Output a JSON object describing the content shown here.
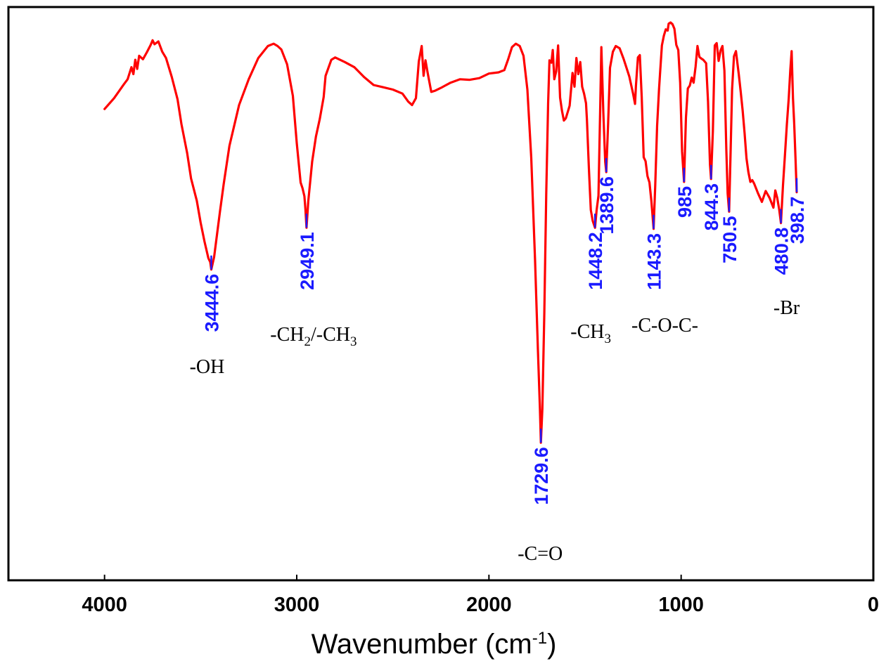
{
  "chart_data": {
    "type": "line",
    "title": "",
    "xlabel": "Wavenumber (cm",
    "xlabel_sup": "-1",
    "xlabel_close": ")",
    "ylabel": "",
    "xlim": [
      4500,
      0
    ],
    "ylim": [
      0,
      100
    ],
    "xticks": [
      4000,
      3000,
      2000,
      1000,
      0
    ],
    "grid": false,
    "line_color": "#ff0000",
    "peak_color": "#1a1aff",
    "series": [
      {
        "points": [
          [
            4000,
            82.2
          ],
          [
            3950,
            84.1
          ],
          [
            3900,
            86.5
          ],
          [
            3880,
            87.4
          ],
          [
            3860,
            89.5
          ],
          [
            3850,
            88.3
          ],
          [
            3840,
            90.8
          ],
          [
            3830,
            89.2
          ],
          [
            3820,
            91.5
          ],
          [
            3800,
            90.9
          ],
          [
            3780,
            92.1
          ],
          [
            3760,
            93.4
          ],
          [
            3750,
            94.2
          ],
          [
            3740,
            93.5
          ],
          [
            3720,
            94.0
          ],
          [
            3700,
            92.2
          ],
          [
            3680,
            91.1
          ],
          [
            3650,
            87.8
          ],
          [
            3620,
            83.9
          ],
          [
            3600,
            79.6
          ],
          [
            3570,
            74.5
          ],
          [
            3550,
            70.1
          ],
          [
            3520,
            66.2
          ],
          [
            3500,
            62.4
          ],
          [
            3480,
            59.1
          ],
          [
            3460,
            56.2
          ],
          [
            3450,
            55.5
          ],
          [
            3444.6,
            54.2
          ],
          [
            3430,
            56.4
          ],
          [
            3400,
            64.2
          ],
          [
            3380,
            69.1
          ],
          [
            3350,
            75.8
          ],
          [
            3300,
            82.9
          ],
          [
            3250,
            87.4
          ],
          [
            3200,
            91.1
          ],
          [
            3150,
            93.2
          ],
          [
            3120,
            93.6
          ],
          [
            3100,
            93.2
          ],
          [
            3080,
            92.6
          ],
          [
            3050,
            90.0
          ],
          [
            3020,
            84.5
          ],
          [
            3000,
            76.3
          ],
          [
            2980,
            69.4
          ],
          [
            2970,
            68.4
          ],
          [
            2960,
            67.0
          ],
          [
            2955,
            64.8
          ],
          [
            2949.1,
            61.5
          ],
          [
            2940,
            66.1
          ],
          [
            2920,
            73.0
          ],
          [
            2900,
            77.4
          ],
          [
            2880,
            80.5
          ],
          [
            2860,
            84.3
          ],
          [
            2850,
            88.0
          ],
          [
            2820,
            90.8
          ],
          [
            2800,
            91.2
          ],
          [
            2750,
            90.4
          ],
          [
            2700,
            89.5
          ],
          [
            2650,
            87.8
          ],
          [
            2600,
            86.4
          ],
          [
            2550,
            86.0
          ],
          [
            2500,
            85.6
          ],
          [
            2450,
            84.9
          ],
          [
            2420,
            83.5
          ],
          [
            2400,
            82.9
          ],
          [
            2380,
            84.1
          ],
          [
            2365,
            90.5
          ],
          [
            2350,
            93.2
          ],
          [
            2340,
            88.0
          ],
          [
            2330,
            90.7
          ],
          [
            2320,
            88.7
          ],
          [
            2300,
            85.2
          ],
          [
            2280,
            85.4
          ],
          [
            2250,
            85.9
          ],
          [
            2200,
            86.8
          ],
          [
            2150,
            87.4
          ],
          [
            2100,
            87.3
          ],
          [
            2050,
            87.6
          ],
          [
            2000,
            88.4
          ],
          [
            1950,
            88.6
          ],
          [
            1920,
            89.0
          ],
          [
            1900,
            90.9
          ],
          [
            1880,
            93.0
          ],
          [
            1860,
            93.6
          ],
          [
            1840,
            93.2
          ],
          [
            1820,
            91.5
          ],
          [
            1800,
            85.6
          ],
          [
            1780,
            73.7
          ],
          [
            1760,
            55.9
          ],
          [
            1745,
            40.1
          ],
          [
            1735,
            30.1
          ],
          [
            1729.6,
            24.0
          ],
          [
            1722,
            29.9
          ],
          [
            1712,
            46.7
          ],
          [
            1702,
            67.3
          ],
          [
            1692,
            83.2
          ],
          [
            1685,
            90.7
          ],
          [
            1675,
            90.3
          ],
          [
            1668,
            92.5
          ],
          [
            1660,
            87.4
          ],
          [
            1650,
            88.8
          ],
          [
            1640,
            93.3
          ],
          [
            1630,
            84.2
          ],
          [
            1620,
            81.9
          ],
          [
            1610,
            80.2
          ],
          [
            1600,
            80.6
          ],
          [
            1580,
            82.8
          ],
          [
            1565,
            88.5
          ],
          [
            1555,
            86.1
          ],
          [
            1545,
            91.1
          ],
          [
            1535,
            88.3
          ],
          [
            1525,
            90.4
          ],
          [
            1515,
            86.1
          ],
          [
            1505,
            84.9
          ],
          [
            1495,
            83.2
          ],
          [
            1490,
            80.3
          ],
          [
            1480,
            71.8
          ],
          [
            1470,
            64.6
          ],
          [
            1460,
            62.7
          ],
          [
            1448.2,
            61.5
          ],
          [
            1440,
            64.5
          ],
          [
            1430,
            67.1
          ],
          [
            1420,
            84.5
          ],
          [
            1415,
            93.0
          ],
          [
            1405,
            81.6
          ],
          [
            1395,
            73.0
          ],
          [
            1389.6,
            71.2
          ],
          [
            1380,
            79.6
          ],
          [
            1370,
            89.4
          ],
          [
            1355,
            92.2
          ],
          [
            1340,
            93.2
          ],
          [
            1320,
            92.8
          ],
          [
            1300,
            91.0
          ],
          [
            1270,
            87.9
          ],
          [
            1250,
            84.9
          ],
          [
            1240,
            83.1
          ],
          [
            1235,
            86.3
          ],
          [
            1225,
            91.2
          ],
          [
            1215,
            91.6
          ],
          [
            1205,
            84.3
          ],
          [
            1195,
            73.8
          ],
          [
            1185,
            73.1
          ],
          [
            1175,
            70.5
          ],
          [
            1165,
            69.4
          ],
          [
            1155,
            66.2
          ],
          [
            1143.3,
            61.3
          ],
          [
            1135,
            68.8
          ],
          [
            1125,
            79.3
          ],
          [
            1115,
            85.6
          ],
          [
            1110,
            88.3
          ],
          [
            1100,
            93.3
          ],
          [
            1090,
            95.0
          ],
          [
            1080,
            96.1
          ],
          [
            1070,
            95.9
          ],
          [
            1065,
            97.1
          ],
          [
            1055,
            97.3
          ],
          [
            1045,
            97.0
          ],
          [
            1035,
            96.2
          ],
          [
            1025,
            93.4
          ],
          [
            1015,
            92.5
          ],
          [
            1005,
            86.8
          ],
          [
            995,
            74.8
          ],
          [
            985,
            69.5
          ],
          [
            975,
            80.7
          ],
          [
            965,
            85.8
          ],
          [
            955,
            86.3
          ],
          [
            945,
            87.7
          ],
          [
            935,
            86.8
          ],
          [
            925,
            89.6
          ],
          [
            915,
            93.2
          ],
          [
            905,
            91.3
          ],
          [
            895,
            91.0
          ],
          [
            885,
            90.8
          ],
          [
            870,
            90.2
          ],
          [
            860,
            83.5
          ],
          [
            850,
            72.5
          ],
          [
            844.3,
            70.0
          ],
          [
            835,
            78.4
          ],
          [
            825,
            93.3
          ],
          [
            815,
            93.7
          ],
          [
            805,
            90.6
          ],
          [
            795,
            92.4
          ],
          [
            785,
            93.2
          ],
          [
            775,
            88.9
          ],
          [
            765,
            75.2
          ],
          [
            758,
            67.5
          ],
          [
            750.5,
            64.3
          ],
          [
            743,
            74.2
          ],
          [
            735,
            85.6
          ],
          [
            725,
            91.4
          ],
          [
            715,
            92.3
          ],
          [
            700,
            88.2
          ],
          [
            690,
            85.2
          ],
          [
            680,
            82.0
          ],
          [
            670,
            78.0
          ],
          [
            660,
            73.6
          ],
          [
            650,
            71.2
          ],
          [
            640,
            69.5
          ],
          [
            630,
            69.8
          ],
          [
            620,
            69.2
          ],
          [
            600,
            67.5
          ],
          [
            580,
            66.0
          ],
          [
            560,
            67.9
          ],
          [
            540,
            66.7
          ],
          [
            520,
            65.0
          ],
          [
            510,
            68.0
          ],
          [
            500,
            66.7
          ],
          [
            490,
            64.7
          ],
          [
            480.8,
            62.3
          ],
          [
            470,
            68.9
          ],
          [
            460,
            74.2
          ],
          [
            450,
            79.5
          ],
          [
            440,
            84.1
          ],
          [
            432,
            89.0
          ],
          [
            425,
            92.3
          ],
          [
            418,
            84.1
          ],
          [
            412,
            79.8
          ],
          [
            405,
            73.6
          ],
          [
            398.7,
            67.7
          ]
        ]
      }
    ],
    "peaks": [
      {
        "wavenumber": 3444.6,
        "label": "3444.6",
        "group": "-OH"
      },
      {
        "wavenumber": 2949.1,
        "label": "2949.1",
        "group_main": "-CH",
        "group_sub1": "2",
        "group_mid": "/-CH",
        "group_sub2": "3"
      },
      {
        "wavenumber": 1729.6,
        "label": "1729.6",
        "group": "-C=O"
      },
      {
        "wavenumber": 1448.2,
        "label": "1448.2",
        "group_main": "-CH",
        "group_sub1": "3"
      },
      {
        "wavenumber": 1389.6,
        "label": "1389.6"
      },
      {
        "wavenumber": 1143.3,
        "label": "1143.3",
        "group": "-C-O-C-"
      },
      {
        "wavenumber": 985,
        "label": "985"
      },
      {
        "wavenumber": 844.3,
        "label": "844.3"
      },
      {
        "wavenumber": 750.5,
        "label": "750.5"
      },
      {
        "wavenumber": 480.8,
        "label": "480.8",
        "group": "-Br"
      },
      {
        "wavenumber": 398.7,
        "label": "398.7"
      }
    ]
  }
}
